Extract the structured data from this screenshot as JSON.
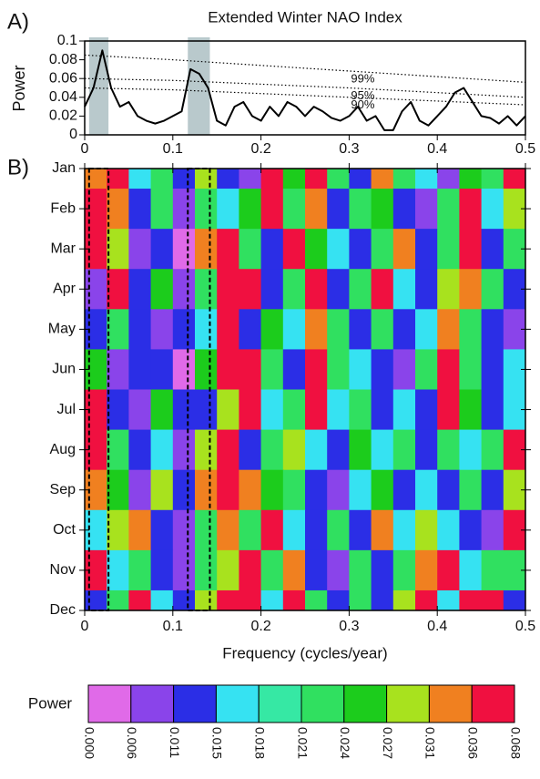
{
  "chart_data": [
    {
      "type": "line",
      "panel_label": "A)",
      "title": "Extended Winter NAO Index",
      "y_label": "Power",
      "xlim": [
        0,
        0.5
      ],
      "ylim": [
        0,
        0.1
      ],
      "xticks": [
        0,
        0.1,
        0.2,
        0.3,
        0.4,
        0.5
      ],
      "yticks": [
        0,
        0.02,
        0.04,
        0.06,
        0.08,
        0.1
      ],
      "color": "#000000",
      "x": [
        0,
        0.01,
        0.02,
        0.03,
        0.04,
        0.05,
        0.06,
        0.07,
        0.08,
        0.09,
        0.1,
        0.11,
        0.12,
        0.13,
        0.14,
        0.15,
        0.16,
        0.17,
        0.18,
        0.19,
        0.2,
        0.21,
        0.22,
        0.23,
        0.24,
        0.25,
        0.26,
        0.27,
        0.28,
        0.29,
        0.3,
        0.31,
        0.32,
        0.33,
        0.34,
        0.35,
        0.36,
        0.37,
        0.38,
        0.39,
        0.4,
        0.41,
        0.42,
        0.43,
        0.44,
        0.45,
        0.46,
        0.47,
        0.48,
        0.49,
        0.5
      ],
      "values": [
        0.03,
        0.05,
        0.09,
        0.05,
        0.03,
        0.035,
        0.02,
        0.015,
        0.012,
        0.015,
        0.02,
        0.025,
        0.07,
        0.065,
        0.05,
        0.015,
        0.01,
        0.03,
        0.035,
        0.02,
        0.015,
        0.03,
        0.02,
        0.035,
        0.03,
        0.02,
        0.03,
        0.025,
        0.018,
        0.015,
        0.02,
        0.03,
        0.015,
        0.02,
        0.005,
        0.005,
        0.025,
        0.035,
        0.015,
        0.01,
        0.02,
        0.03,
        0.045,
        0.05,
        0.035,
        0.02,
        0.018,
        0.012,
        0.02,
        0.01,
        0.02
      ],
      "significance": [
        {
          "label": "99%",
          "x": [
            0,
            0.1,
            0.2,
            0.3,
            0.4,
            0.5
          ],
          "values": [
            0.085,
            0.08,
            0.074,
            0.068,
            0.062,
            0.056
          ]
        },
        {
          "label": "95%",
          "x": [
            0,
            0.1,
            0.2,
            0.3,
            0.4,
            0.5
          ],
          "values": [
            0.06,
            0.058,
            0.054,
            0.05,
            0.045,
            0.04
          ]
        },
        {
          "label": "90%",
          "x": [
            0,
            0.1,
            0.2,
            0.3,
            0.4,
            0.5
          ],
          "values": [
            0.05,
            0.048,
            0.044,
            0.04,
            0.036,
            0.032
          ]
        }
      ],
      "highlight_bands": [
        [
          0.005,
          0.027
        ],
        [
          0.117,
          0.142
        ]
      ],
      "band_color": "#b9c9cc"
    },
    {
      "type": "heatmap",
      "panel_label": "B)",
      "x_label": "Frequency (cycles/year)",
      "xlim": [
        0,
        0.5
      ],
      "xticks": [
        0,
        0.1,
        0.2,
        0.3,
        0.4,
        0.5
      ],
      "categories": [
        "Jan",
        "Feb",
        "Mar",
        "Apr",
        "May",
        "Jun",
        "Jul",
        "Aug",
        "Sep",
        "Oct",
        "Nov",
        "Dec"
      ],
      "x": [
        0.0125,
        0.0375,
        0.0625,
        0.0875,
        0.1125,
        0.1375,
        0.1625,
        0.1875,
        0.2125,
        0.2375,
        0.2625,
        0.2875,
        0.3125,
        0.3375,
        0.3625,
        0.3875,
        0.4125,
        0.4375,
        0.4625,
        0.4875
      ],
      "z": [
        [
          0.033,
          0.045,
          0.016,
          0.022,
          0.013,
          0.029,
          0.013,
          0.008,
          0.045,
          0.025,
          0.045,
          0.022,
          0.013,
          0.033,
          0.022,
          0.016,
          0.008,
          0.025,
          0.022,
          0.045
        ],
        [
          0.045,
          0.033,
          0.013,
          0.022,
          0.008,
          0.022,
          0.016,
          0.025,
          0.045,
          0.022,
          0.033,
          0.013,
          0.022,
          0.025,
          0.013,
          0.008,
          0.022,
          0.045,
          0.016,
          0.029
        ],
        [
          0.045,
          0.029,
          0.008,
          0.013,
          0.003,
          0.033,
          0.045,
          0.022,
          0.013,
          0.045,
          0.025,
          0.016,
          0.013,
          0.022,
          0.033,
          0.013,
          0.022,
          0.045,
          0.013,
          0.022
        ],
        [
          0.008,
          0.045,
          0.013,
          0.025,
          0.008,
          0.022,
          0.045,
          0.045,
          0.013,
          0.022,
          0.045,
          0.013,
          0.022,
          0.045,
          0.016,
          0.013,
          0.029,
          0.033,
          0.022,
          0.013
        ],
        [
          0.013,
          0.022,
          0.013,
          0.008,
          0.013,
          0.016,
          0.045,
          0.013,
          0.025,
          0.016,
          0.033,
          0.022,
          0.013,
          0.022,
          0.013,
          0.016,
          0.033,
          0.022,
          0.013,
          0.008
        ],
        [
          0.025,
          0.008,
          0.013,
          0.013,
          0.003,
          0.025,
          0.045,
          0.045,
          0.022,
          0.013,
          0.045,
          0.022,
          0.016,
          0.013,
          0.008,
          0.022,
          0.045,
          0.022,
          0.013,
          0.016
        ],
        [
          0.045,
          0.013,
          0.008,
          0.025,
          0.013,
          0.013,
          0.029,
          0.045,
          0.016,
          0.022,
          0.045,
          0.016,
          0.022,
          0.013,
          0.016,
          0.013,
          0.045,
          0.025,
          0.013,
          0.016
        ],
        [
          0.045,
          0.022,
          0.013,
          0.016,
          0.008,
          0.029,
          0.045,
          0.013,
          0.022,
          0.029,
          0.016,
          0.013,
          0.025,
          0.016,
          0.022,
          0.013,
          0.022,
          0.016,
          0.022,
          0.045
        ],
        [
          0.033,
          0.025,
          0.008,
          0.029,
          0.013,
          0.033,
          0.045,
          0.033,
          0.025,
          0.022,
          0.013,
          0.008,
          0.016,
          0.025,
          0.013,
          0.016,
          0.013,
          0.022,
          0.013,
          0.029
        ],
        [
          0.016,
          0.029,
          0.033,
          0.013,
          0.008,
          0.022,
          0.033,
          0.022,
          0.045,
          0.016,
          0.013,
          0.022,
          0.013,
          0.033,
          0.016,
          0.029,
          0.016,
          0.013,
          0.008,
          0.045
        ],
        [
          0.045,
          0.016,
          0.022,
          0.013,
          0.008,
          0.022,
          0.029,
          0.045,
          0.022,
          0.033,
          0.013,
          0.008,
          0.022,
          0.013,
          0.022,
          0.033,
          0.045,
          0.016,
          0.022,
          0.022
        ],
        [
          0.013,
          0.022,
          0.045,
          0.016,
          0.013,
          0.029,
          0.045,
          0.045,
          0.016,
          0.045,
          0.022,
          0.013,
          0.022,
          0.013,
          0.029,
          0.045,
          0.016,
          0.045,
          0.045,
          0.013
        ]
      ],
      "colorbar": {
        "label": "Power",
        "levels": [
          {
            "value": 0,
            "label": "0.000"
          },
          0.006,
          0.011,
          0.015,
          0.018,
          0.021,
          0.024,
          0.027,
          0.031,
          0.036,
          0.068
        ],
        "colors": [
          "#e06ae8",
          "#8a44ea",
          "#2b2ee6",
          "#36e2f2",
          "#36e8a4",
          "#30e060",
          "#1ccc1c",
          "#a8e21e",
          "#f08020",
          "#f01040"
        ]
      }
    }
  ]
}
